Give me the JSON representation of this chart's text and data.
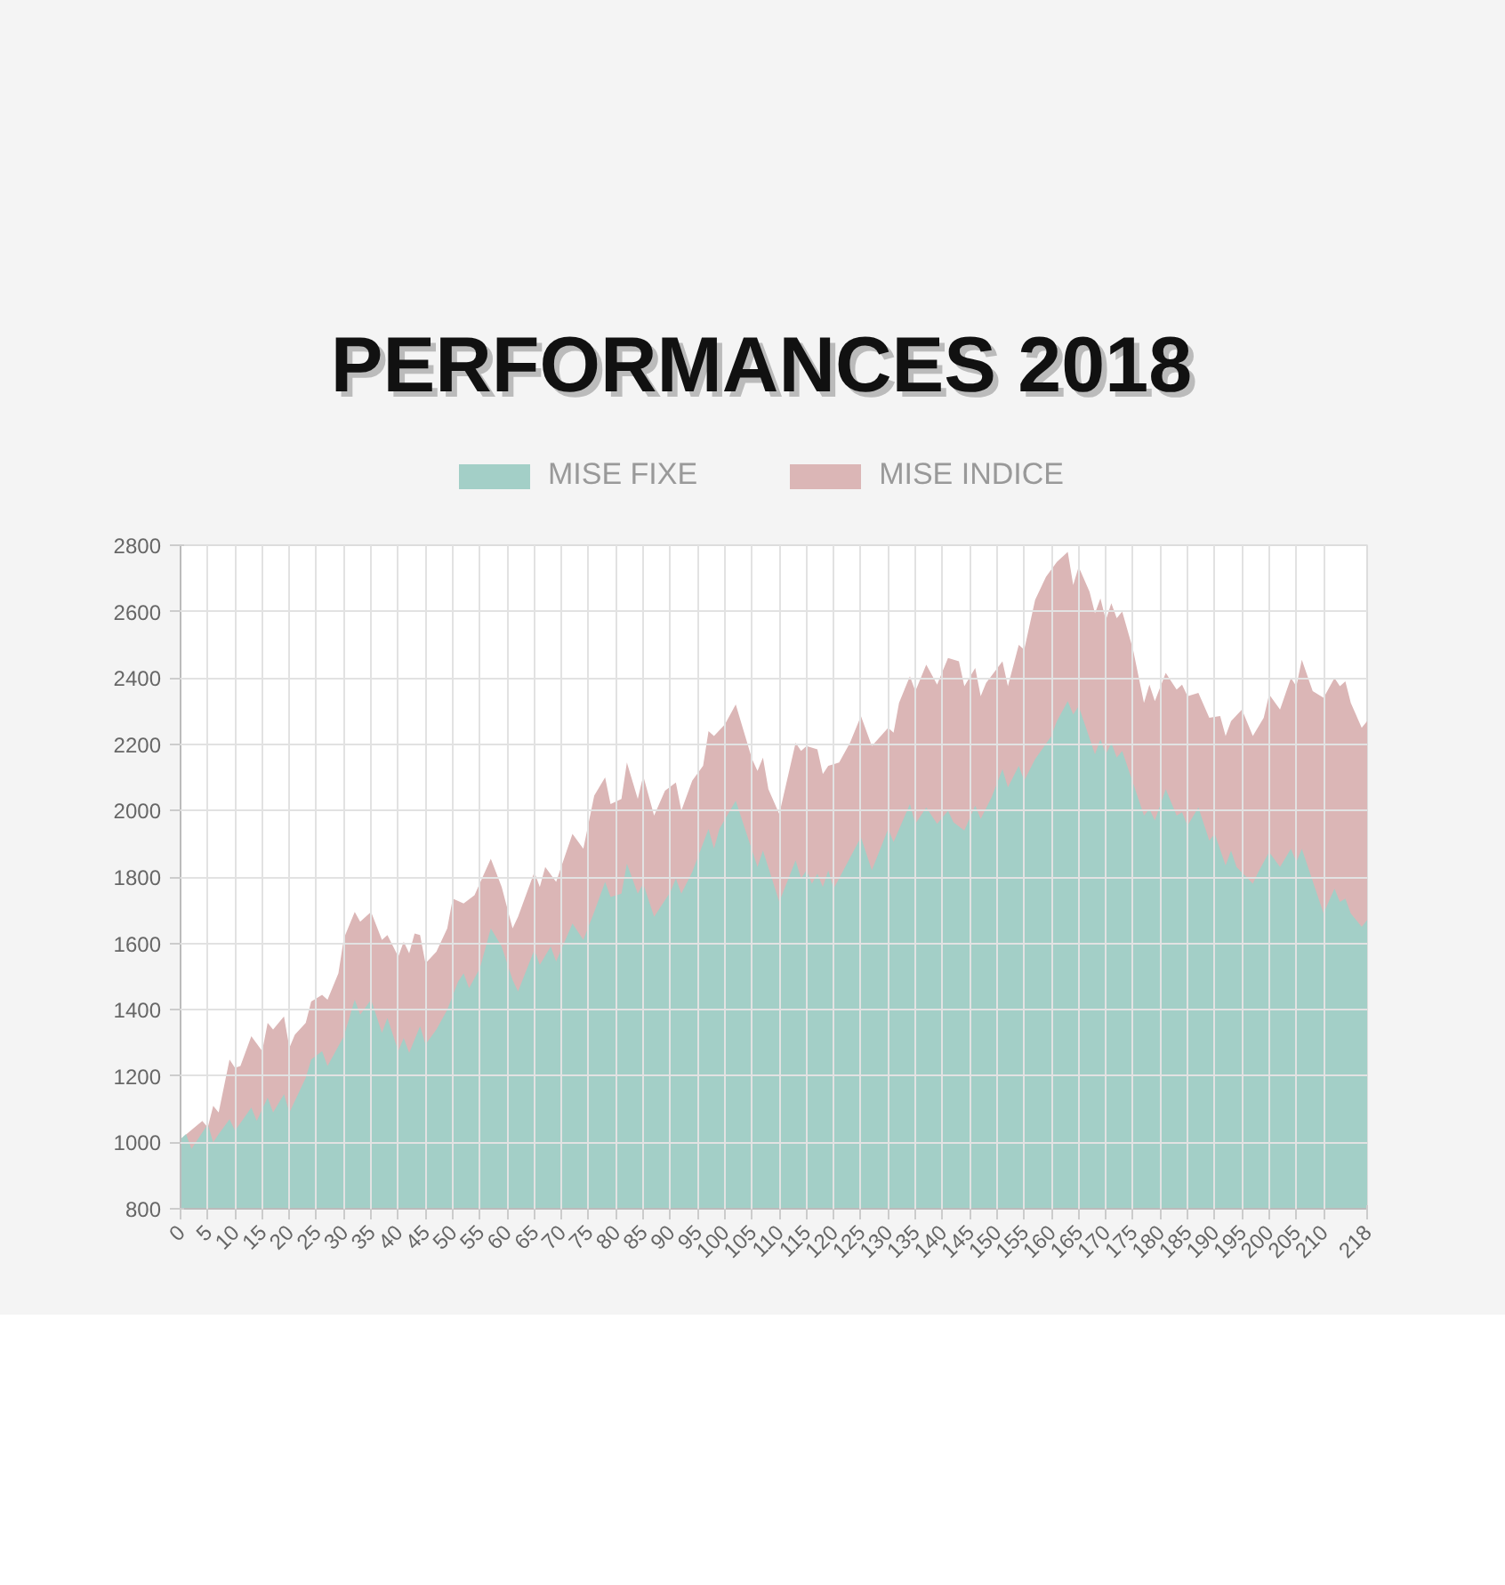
{
  "chart_data": {
    "type": "area",
    "title": "PERFORMANCES 2018",
    "xlim": [
      0,
      218
    ],
    "xticks": [
      0,
      5,
      10,
      15,
      20,
      25,
      30,
      35,
      40,
      45,
      50,
      55,
      60,
      65,
      70,
      75,
      80,
      85,
      90,
      95,
      100,
      105,
      110,
      115,
      120,
      125,
      130,
      135,
      140,
      145,
      150,
      155,
      160,
      165,
      170,
      175,
      180,
      185,
      190,
      195,
      200,
      205,
      210,
      218
    ],
    "ylim": [
      800,
      2800
    ],
    "yticks": [
      800,
      1000,
      1200,
      1400,
      1600,
      1800,
      2000,
      2200,
      2400,
      2600,
      2800
    ],
    "grid": true,
    "legend": "top",
    "series": [
      {
        "name": "MISE INDICE",
        "color": "#dbb6b6",
        "x": [
          0,
          4,
          5,
          6,
          7,
          9,
          10,
          11,
          13,
          15,
          16,
          17,
          19,
          20,
          21,
          23,
          24,
          26,
          27,
          29,
          30,
          32,
          33,
          35,
          37,
          38,
          40,
          41,
          42,
          43,
          44,
          45,
          47,
          49,
          50,
          52,
          54,
          57,
          59,
          61,
          62,
          65,
          66,
          67,
          69,
          72,
          74,
          76,
          78,
          79,
          81,
          82,
          84,
          85,
          87,
          89,
          91,
          92,
          94,
          96,
          97,
          98,
          100,
          102,
          105,
          106,
          107,
          108,
          110,
          113,
          114,
          115,
          117,
          118,
          119,
          121,
          123,
          125,
          127,
          130,
          131,
          132,
          134,
          135,
          137,
          139,
          141,
          143,
          144,
          146,
          147,
          148,
          151,
          152,
          154,
          155,
          157,
          159,
          161,
          163,
          164,
          165,
          167,
          168,
          169,
          170,
          171,
          172,
          173,
          175,
          177,
          178,
          179,
          181,
          183,
          184,
          185,
          187,
          189,
          191,
          192,
          193,
          195,
          197,
          199,
          200,
          202,
          204,
          205,
          206,
          208,
          210,
          212,
          213,
          214,
          215,
          217,
          218
        ],
        "values": [
          1010,
          1065,
          1045,
          1110,
          1090,
          1250,
          1225,
          1230,
          1320,
          1275,
          1360,
          1340,
          1380,
          1285,
          1325,
          1360,
          1425,
          1445,
          1430,
          1510,
          1615,
          1695,
          1665,
          1695,
          1610,
          1625,
          1560,
          1605,
          1570,
          1630,
          1625,
          1540,
          1575,
          1645,
          1735,
          1720,
          1745,
          1855,
          1770,
          1645,
          1680,
          1815,
          1770,
          1830,
          1785,
          1930,
          1885,
          2045,
          2100,
          2020,
          2035,
          2145,
          2035,
          2105,
          1985,
          2060,
          2085,
          2000,
          2090,
          2135,
          2240,
          2225,
          2260,
          2320,
          2155,
          2120,
          2160,
          2065,
          1990,
          2205,
          2180,
          2195,
          2185,
          2110,
          2135,
          2145,
          2205,
          2285,
          2195,
          2250,
          2235,
          2325,
          2405,
          2360,
          2440,
          2380,
          2460,
          2450,
          2375,
          2430,
          2345,
          2385,
          2450,
          2375,
          2500,
          2485,
          2635,
          2705,
          2750,
          2780,
          2680,
          2735,
          2660,
          2595,
          2640,
          2575,
          2625,
          2580,
          2600,
          2485,
          2325,
          2380,
          2330,
          2415,
          2365,
          2380,
          2345,
          2355,
          2280,
          2285,
          2225,
          2270,
          2305,
          2225,
          2280,
          2350,
          2305,
          2400,
          2375,
          2455,
          2360,
          2340,
          2400,
          2375,
          2390,
          2325,
          2250,
          2270
        ]
      },
      {
        "name": "MISE FIXE",
        "color": "#a3cfc7",
        "x": [
          0,
          1,
          2,
          5,
          6,
          7,
          9,
          10,
          13,
          14,
          16,
          17,
          19,
          20,
          23,
          24,
          26,
          27,
          30,
          31,
          32,
          33,
          35,
          37,
          38,
          40,
          41,
          42,
          44,
          45,
          47,
          49,
          51,
          52,
          53,
          55,
          57,
          59,
          61,
          62,
          65,
          66,
          68,
          69,
          72,
          74,
          76,
          78,
          79,
          81,
          82,
          84,
          85,
          87,
          90,
          91,
          92,
          94,
          97,
          98,
          99,
          102,
          104,
          106,
          107,
          110,
          113,
          114,
          115,
          116,
          117,
          118,
          119,
          120,
          125,
          127,
          130,
          131,
          134,
          135,
          137,
          139,
          141,
          142,
          144,
          146,
          147,
          149,
          151,
          152,
          154,
          155,
          157,
          160,
          161,
          163,
          164,
          165,
          168,
          169,
          170,
          171,
          172,
          173,
          177,
          178,
          179,
          181,
          183,
          184,
          185,
          187,
          189,
          190,
          192,
          193,
          194,
          197,
          198,
          200,
          202,
          204,
          205,
          206,
          210,
          212,
          213,
          214,
          215,
          217,
          218
        ],
        "values": [
          1010,
          1025,
          980,
          1055,
          1000,
          1025,
          1070,
          1035,
          1105,
          1065,
          1135,
          1090,
          1145,
          1090,
          1195,
          1250,
          1275,
          1230,
          1320,
          1375,
          1430,
          1385,
          1430,
          1330,
          1375,
          1275,
          1315,
          1270,
          1350,
          1295,
          1340,
          1400,
          1485,
          1510,
          1465,
          1525,
          1645,
          1590,
          1490,
          1455,
          1580,
          1535,
          1590,
          1545,
          1660,
          1610,
          1695,
          1785,
          1740,
          1750,
          1840,
          1750,
          1780,
          1680,
          1755,
          1795,
          1750,
          1815,
          1945,
          1885,
          1945,
          2030,
          1930,
          1830,
          1880,
          1725,
          1850,
          1795,
          1820,
          1780,
          1810,
          1770,
          1820,
          1765,
          1920,
          1820,
          1945,
          1905,
          2020,
          1960,
          2010,
          1960,
          2000,
          1965,
          1940,
          2015,
          1975,
          2040,
          2125,
          2070,
          2135,
          2090,
          2155,
          2225,
          2270,
          2330,
          2290,
          2315,
          2170,
          2215,
          2170,
          2205,
          2160,
          2180,
          1985,
          2005,
          1970,
          2065,
          1985,
          1995,
          1955,
          2010,
          1910,
          1930,
          1835,
          1880,
          1830,
          1780,
          1815,
          1875,
          1830,
          1885,
          1845,
          1885,
          1690,
          1765,
          1725,
          1735,
          1690,
          1650,
          1670
        ]
      }
    ]
  }
}
